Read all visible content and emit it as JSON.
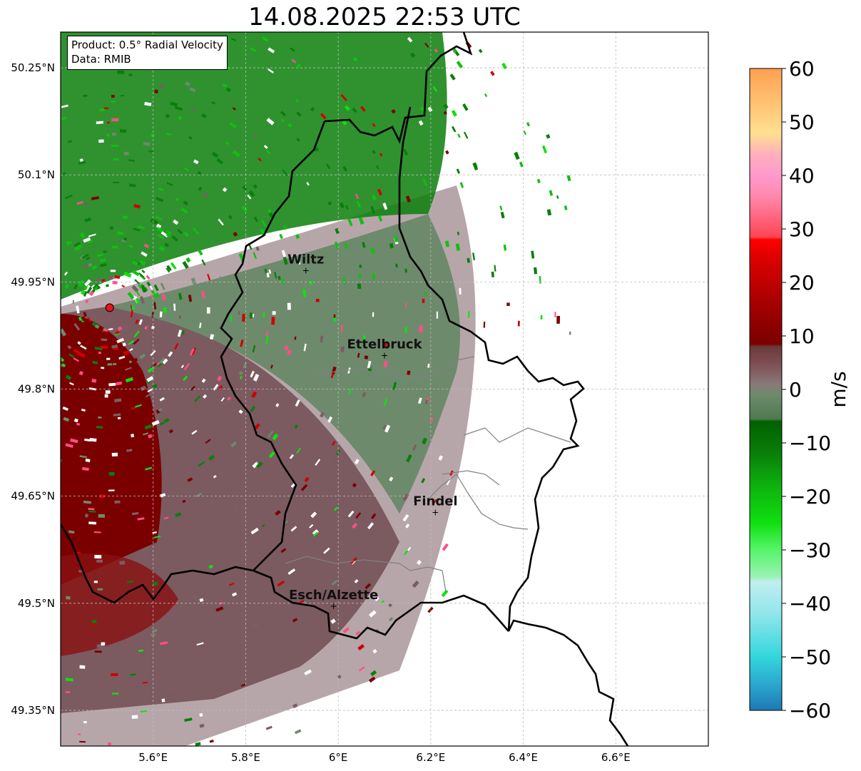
{
  "title": "14.08.2025 22:53 UTC",
  "info": {
    "product": "Product: 0.5° Radial Velocity",
    "source": "Data: RMIB"
  },
  "map": {
    "lon_range": [
      5.4,
      6.8
    ],
    "lat_range": [
      49.3,
      50.3
    ],
    "lat_ticks": [
      {
        "value": 50.25,
        "label": "50.25°N"
      },
      {
        "value": 50.1,
        "label": "50.1°N"
      },
      {
        "value": 49.95,
        "label": "49.95°N"
      },
      {
        "value": 49.8,
        "label": "49.8°N"
      },
      {
        "value": 49.65,
        "label": "49.65°N"
      },
      {
        "value": 49.5,
        "label": "49.5°N"
      },
      {
        "value": 49.35,
        "label": "49.35°N"
      }
    ],
    "lon_ticks": [
      {
        "value": 5.6,
        "label": "5.6°E"
      },
      {
        "value": 5.8,
        "label": "5.8°E"
      },
      {
        "value": 6.0,
        "label": "6°E"
      },
      {
        "value": 6.2,
        "label": "6.2°E"
      },
      {
        "value": 6.4,
        "label": "6.4°E"
      },
      {
        "value": 6.6,
        "label": "6.6°E"
      }
    ],
    "radar_site": {
      "lon": 5.506,
      "lat": 49.914
    },
    "cities": [
      {
        "name": "Wiltz",
        "lon": 5.93,
        "lat": 49.966
      },
      {
        "name": "Ettelbruck",
        "lon": 6.1,
        "lat": 49.847
      },
      {
        "name": "Findel",
        "lon": 6.21,
        "lat": 49.627
      },
      {
        "name": "Esch/Alzette",
        "lon": 5.99,
        "lat": 49.496
      }
    ],
    "colors": {
      "gridline": "#bbbbbb",
      "border": "#000000",
      "canton_border": "#808080",
      "radar_dot": "#e8141c"
    }
  },
  "colorbar": {
    "label": "m/s",
    "min": -60,
    "max": 60,
    "ticks": [
      {
        "value": 60,
        "label": "60"
      },
      {
        "value": 50,
        "label": "50"
      },
      {
        "value": 40,
        "label": "40"
      },
      {
        "value": 30,
        "label": "30"
      },
      {
        "value": 20,
        "label": "20"
      },
      {
        "value": 10,
        "label": "10"
      },
      {
        "value": 0,
        "label": "0"
      },
      {
        "value": -10,
        "label": "−10"
      },
      {
        "value": -20,
        "label": "−20"
      },
      {
        "value": -30,
        "label": "−30"
      },
      {
        "value": -40,
        "label": "−40"
      },
      {
        "value": -50,
        "label": "−50"
      },
      {
        "value": -60,
        "label": "−60"
      }
    ],
    "stops": [
      {
        "v": -60,
        "c": "#1f77b4"
      },
      {
        "v": -55,
        "c": "#2aa9cf"
      },
      {
        "v": -50,
        "c": "#33d6dd"
      },
      {
        "v": -42,
        "c": "#8fe6ea"
      },
      {
        "v": -36,
        "c": "#c2eef0"
      },
      {
        "v": -35,
        "c": "#9af2b2"
      },
      {
        "v": -30,
        "c": "#55f56b"
      },
      {
        "v": -25,
        "c": "#10e010"
      },
      {
        "v": -18,
        "c": "#0db10d"
      },
      {
        "v": -12,
        "c": "#0a7f0a"
      },
      {
        "v": -6,
        "c": "#006000"
      },
      {
        "v": -5.5,
        "c": "#4f7a50"
      },
      {
        "v": -1,
        "c": "#6e8a6c"
      },
      {
        "v": 1,
        "c": "#8a7878"
      },
      {
        "v": 5,
        "c": "#7d4d52"
      },
      {
        "v": 8,
        "c": "#6b3a3a"
      },
      {
        "v": 8.5,
        "c": "#7a0000"
      },
      {
        "v": 15,
        "c": "#a00000"
      },
      {
        "v": 25,
        "c": "#e00000"
      },
      {
        "v": 28,
        "c": "#ff0000"
      },
      {
        "v": 28.5,
        "c": "#ff4455"
      },
      {
        "v": 36,
        "c": "#ff88aa"
      },
      {
        "v": 40,
        "c": "#ff99cc"
      },
      {
        "v": 44,
        "c": "#ffb0bb"
      },
      {
        "v": 48,
        "c": "#ffe090"
      },
      {
        "v": 54,
        "c": "#ffbf70"
      },
      {
        "v": 60,
        "c": "#ffa050"
      }
    ]
  }
}
